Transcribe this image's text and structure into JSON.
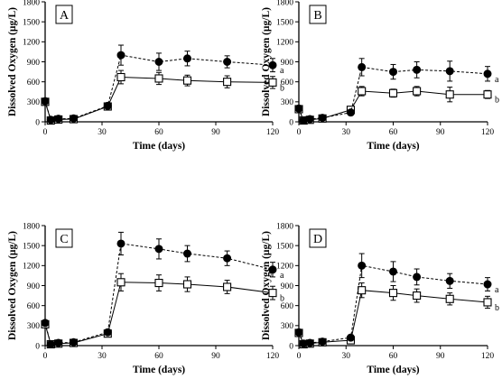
{
  "chart_data": [
    {
      "type": "line",
      "panel_label": "A",
      "xlabel": "Time (days)",
      "ylabel": "Dissolved Oxygen (µg/L)",
      "xlim": [
        0,
        120
      ],
      "ylim": [
        0,
        1800
      ],
      "xticks": [
        "0",
        "30",
        "60",
        "90",
        "120"
      ],
      "yticks": [
        "0",
        "300",
        "600",
        "900",
        "1200",
        "1500",
        "1800"
      ],
      "x": [
        0,
        3,
        7,
        15,
        33,
        40,
        60,
        75,
        96,
        120
      ],
      "series": [
        {
          "name": "a",
          "marker": "filled-circle",
          "line": "dashed",
          "values": [
            310,
            30,
            45,
            50,
            240,
            1000,
            900,
            950,
            900,
            850
          ],
          "errors": [
            30,
            30,
            30,
            30,
            40,
            150,
            130,
            110,
            90,
            100
          ]
        },
        {
          "name": "b",
          "marker": "open-square",
          "line": "solid",
          "values": [
            300,
            20,
            35,
            40,
            230,
            670,
            650,
            620,
            600,
            590
          ],
          "errors": [
            30,
            30,
            30,
            30,
            40,
            100,
            90,
            80,
            90,
            90
          ]
        }
      ]
    },
    {
      "type": "line",
      "panel_label": "B",
      "xlabel": "Time (days)",
      "ylabel": "Dissolved Oxygen (µg/L)",
      "xlim": [
        0,
        120
      ],
      "ylim": [
        0,
        1800
      ],
      "xticks": [
        "0",
        "30",
        "60",
        "90",
        "120"
      ],
      "yticks": [
        "0",
        "300",
        "600",
        "900",
        "1200",
        "1500",
        "1800"
      ],
      "x": [
        0,
        3,
        7,
        15,
        33,
        40,
        60,
        75,
        96,
        120
      ],
      "series": [
        {
          "name": "a",
          "marker": "filled-circle",
          "line": "dashed",
          "values": [
            200,
            20,
            40,
            60,
            140,
            820,
            750,
            780,
            760,
            720
          ],
          "errors": [
            40,
            30,
            30,
            30,
            40,
            130,
            110,
            120,
            150,
            110
          ]
        },
        {
          "name": "b",
          "marker": "open-square",
          "line": "solid",
          "values": [
            190,
            20,
            30,
            50,
            180,
            460,
            430,
            460,
            410,
            410
          ],
          "errors": [
            40,
            30,
            30,
            30,
            40,
            70,
            60,
            70,
            110,
            60
          ]
        }
      ]
    },
    {
      "type": "line",
      "panel_label": "C",
      "xlabel": "Time (days)",
      "ylabel": "Dissolved Oxygen (µg/L)",
      "xlim": [
        0,
        120
      ],
      "ylim": [
        0,
        1800
      ],
      "xticks": [
        "0",
        "30",
        "60",
        "90",
        "120"
      ],
      "yticks": [
        "0",
        "300",
        "600",
        "900",
        "1200",
        "1500",
        "1800"
      ],
      "x": [
        0,
        3,
        7,
        15,
        33,
        40,
        60,
        75,
        96,
        120
      ],
      "series": [
        {
          "name": "a",
          "marker": "filled-circle",
          "line": "dashed",
          "values": [
            340,
            20,
            40,
            50,
            200,
            1530,
            1450,
            1380,
            1310,
            1140
          ],
          "errors": [
            40,
            30,
            30,
            30,
            40,
            170,
            150,
            120,
            110,
            110
          ]
        },
        {
          "name": "b",
          "marker": "open-square",
          "line": "solid",
          "values": [
            320,
            20,
            30,
            40,
            180,
            950,
            940,
            920,
            880,
            790
          ],
          "errors": [
            40,
            30,
            30,
            30,
            40,
            130,
            120,
            110,
            100,
            100
          ]
        }
      ]
    },
    {
      "type": "line",
      "panel_label": "D",
      "xlabel": "Time (days)",
      "ylabel": "Dissolved Oxygen (µg/L)",
      "xlim": [
        0,
        120
      ],
      "ylim": [
        0,
        1800
      ],
      "xticks": [
        "0",
        "30",
        "60",
        "90",
        "120"
      ],
      "yticks": [
        "0",
        "300",
        "600",
        "900",
        "1200",
        "1500",
        "1800"
      ],
      "x": [
        0,
        3,
        7,
        15,
        33,
        40,
        60,
        75,
        96,
        120
      ],
      "series": [
        {
          "name": "a",
          "marker": "filled-circle",
          "line": "dashed",
          "values": [
            200,
            30,
            40,
            60,
            120,
            1200,
            1110,
            1030,
            970,
            920
          ],
          "errors": [
            40,
            30,
            30,
            30,
            40,
            180,
            150,
            120,
            110,
            100
          ]
        },
        {
          "name": "b",
          "marker": "open-square",
          "line": "solid",
          "values": [
            190,
            20,
            30,
            50,
            80,
            830,
            790,
            750,
            700,
            650
          ],
          "errors": [
            40,
            30,
            30,
            30,
            40,
            110,
            110,
            100,
            90,
            90
          ]
        }
      ]
    }
  ]
}
